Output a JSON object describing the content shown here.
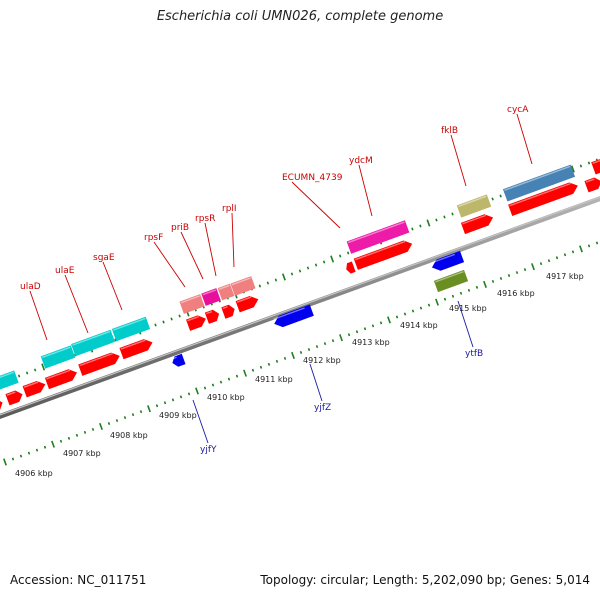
{
  "title": "Escherichia coli UMN026, complete genome",
  "footer": {
    "accession": "Accession: NC_011751",
    "topology": "Topology: circular; Length: 5,202,090 bp; Genes: 5,014"
  },
  "colors": {
    "backbone": "#8c8c8c",
    "tick_green": "#1e7f1e",
    "red_gene": "#ff0000",
    "blue_gene": "#0000ee",
    "label_red": "#cc0000",
    "label_blue": "#1a1aa6"
  },
  "scale_ticks": [
    "4906 kbp",
    "4907 kbp",
    "4908 kbp",
    "4909 kbp",
    "4910 kbp",
    "4911 kbp",
    "4912 kbp",
    "4913 kbp",
    "4914 kbp",
    "4915 kbp",
    "4916 kbp",
    "4917 kbp"
  ],
  "upper_labels": [
    "ulaD",
    "ulaE",
    "sgaE",
    "rpsF",
    "priB",
    "rpsR",
    "rplI",
    "ECUMN_4739",
    "ydcM",
    "fklB",
    "cycA"
  ],
  "lower_labels": [
    "yjfY",
    "yjfZ",
    "ytfB"
  ]
}
